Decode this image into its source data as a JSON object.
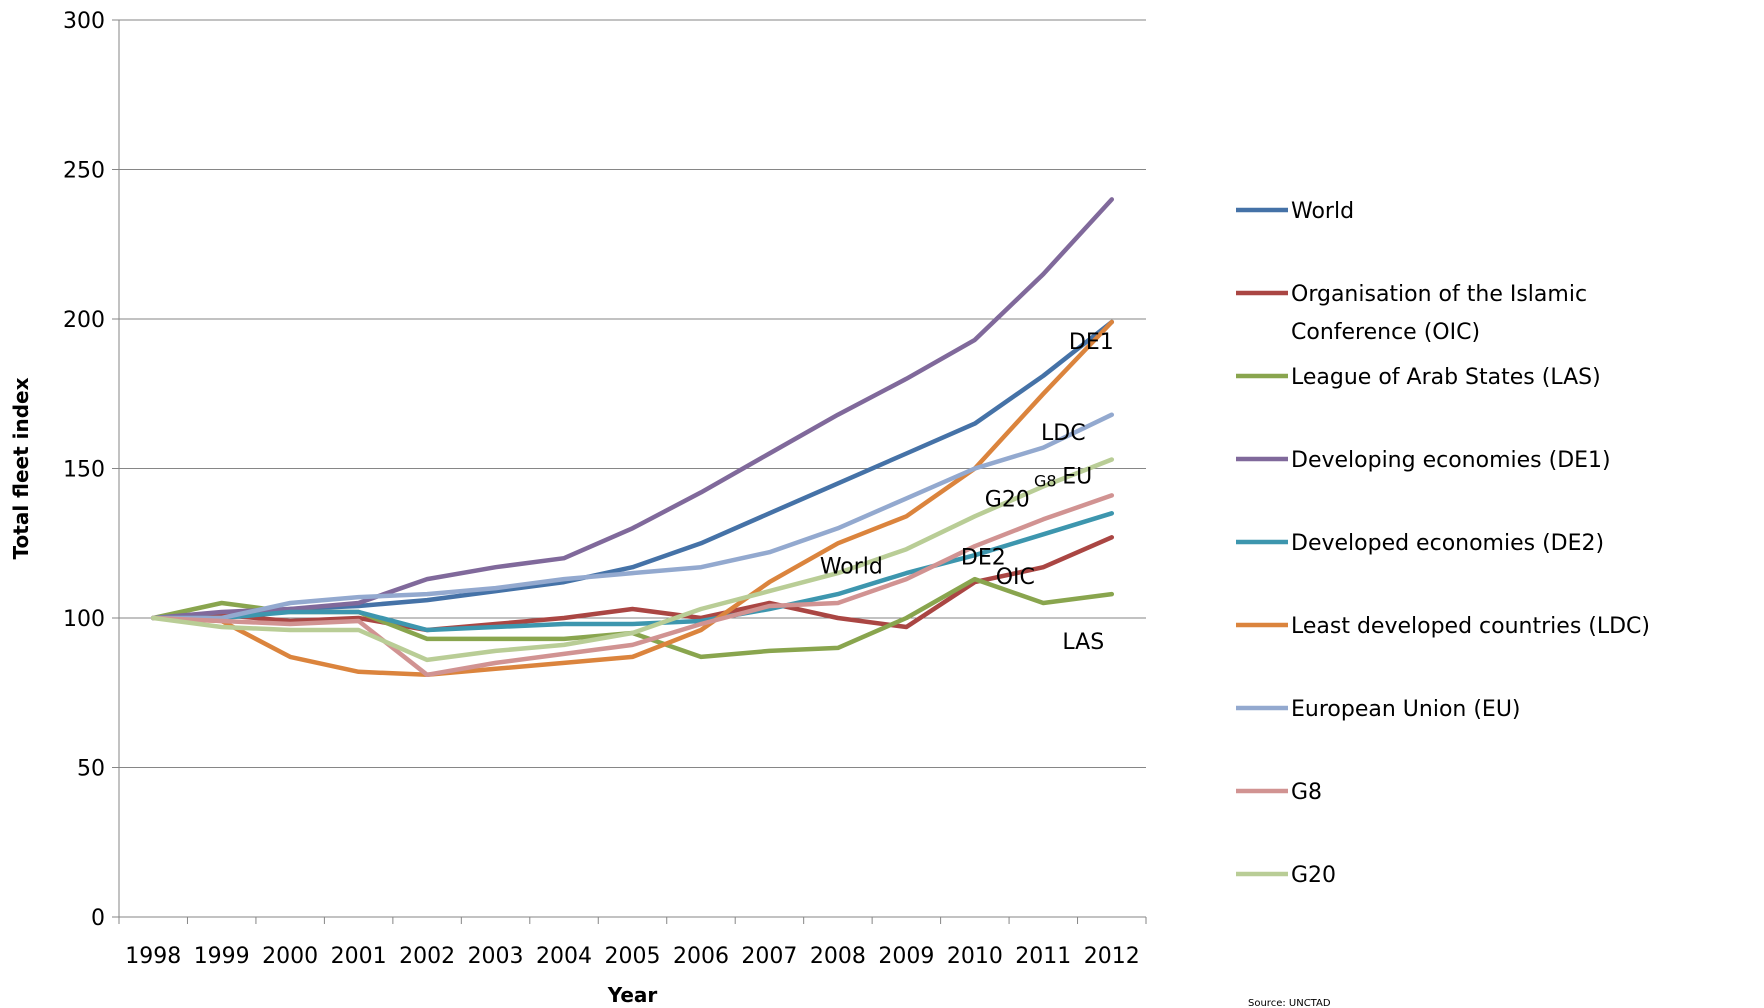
{
  "chart_data": {
    "type": "line",
    "title": "",
    "xlabel": "Year",
    "ylabel": "Total fleet index",
    "ylim": [
      0,
      300
    ],
    "yticks": [
      0,
      50,
      100,
      150,
      200,
      250,
      300
    ],
    "grid": "horizontal",
    "legend_position": "right",
    "categories": [
      "1998",
      "1999",
      "2000",
      "2001",
      "2002",
      "2003",
      "2004",
      "2005",
      "2006",
      "2007",
      "2008",
      "2009",
      "2010",
      "2011",
      "2012"
    ],
    "series": [
      {
        "name": "World",
        "color": "#4572A7",
        "values": [
          100,
          101,
          103,
          104,
          106,
          109,
          112,
          117,
          125,
          135,
          145,
          155,
          165,
          181,
          199
        ]
      },
      {
        "name": "Organisation of the Islamic Conference (OIC)",
        "color": "#AA4643",
        "values": [
          100,
          101,
          99,
          100,
          96,
          98,
          100,
          103,
          100,
          105,
          100,
          97,
          112,
          117,
          127
        ]
      },
      {
        "name": "League of Arab States (LAS)",
        "color": "#89A54E",
        "values": [
          100,
          105,
          102,
          102,
          93,
          93,
          93,
          95,
          87,
          89,
          90,
          100,
          113,
          105,
          108
        ]
      },
      {
        "name": "Developing economies (DE1)",
        "color": "#80699B",
        "values": [
          100,
          102,
          103,
          105,
          113,
          117,
          120,
          130,
          142,
          155,
          168,
          180,
          193,
          215,
          240
        ]
      },
      {
        "name": "Developed economies (DE2)",
        "color": "#3D96AE",
        "values": [
          100,
          100,
          102,
          102,
          96,
          97,
          98,
          98,
          99,
          103,
          108,
          115,
          121,
          128,
          135
        ]
      },
      {
        "name": "Least developed countries (LDC)",
        "color": "#DB843D",
        "values": [
          100,
          99,
          87,
          82,
          81,
          83,
          85,
          87,
          96,
          112,
          125,
          134,
          150,
          175,
          199
        ]
      },
      {
        "name": "European Union (EU)",
        "color": "#93A9CF",
        "values": [
          100,
          100,
          105,
          107,
          108,
          110,
          113,
          115,
          117,
          122,
          130,
          140,
          150,
          157,
          168
        ]
      },
      {
        "name": "G8",
        "color": "#D19392",
        "values": [
          100,
          99,
          98,
          99,
          81,
          85,
          88,
          91,
          98,
          104,
          105,
          113,
          124,
          133,
          141
        ]
      },
      {
        "name": "G20",
        "color": "#B9CD96",
        "values": [
          100,
          97,
          96,
          96,
          86,
          89,
          91,
          95,
          103,
          109,
          115,
          123,
          134,
          144,
          153
        ]
      }
    ],
    "annotations": [
      {
        "text": "DE1",
        "series": "Developing economies (DE1)"
      },
      {
        "text": "World",
        "series": "World"
      },
      {
        "text": "LDC",
        "series": "Least developed countries (LDC)"
      },
      {
        "text": "EU",
        "series": "European Union (EU)"
      },
      {
        "text": "G20",
        "series": "G20"
      },
      {
        "text": "G8",
        "series": "G8"
      },
      {
        "text": "DE2",
        "series": "Developed economies (DE2)"
      },
      {
        "text": "OIC",
        "series": "Organisation of the Islamic Conference (OIC)"
      },
      {
        "text": "LAS",
        "series": "League of Arab States (LAS)"
      }
    ],
    "source": "Source: UNCTAD"
  }
}
